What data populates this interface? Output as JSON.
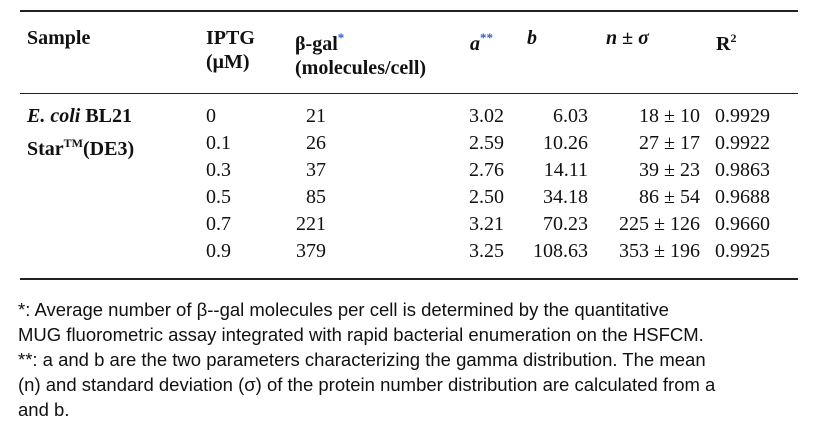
{
  "table": {
    "headers": {
      "sample": "Sample",
      "iptg_line1": "IPTG",
      "iptg_line2": "(μM)",
      "bgal_line1": "β-gal",
      "bgal_mark": "*",
      "bgal_line2": "(molecules/cell)",
      "a": "a",
      "a_mark": "**",
      "b": "b",
      "n_sigma": "n ± σ",
      "r2": "R",
      "r2_sup": "2"
    },
    "sample": {
      "line1_italic": "E. coli",
      "line1_rest": " BL21",
      "line2_main": "Star",
      "line2_tm": "TM",
      "line2_rest": "(DE3)"
    },
    "rows": [
      {
        "iptg": "0",
        "bgal": "21",
        "a": "3.02",
        "b": "6.03",
        "n_sigma": "18 ± 10",
        "r2": "0.9929"
      },
      {
        "iptg": "0.1",
        "bgal": "26",
        "a": "2.59",
        "b": "10.26",
        "n_sigma": "27 ± 17",
        "r2": "0.9922"
      },
      {
        "iptg": "0.3",
        "bgal": "37",
        "a": "2.76",
        "b": "14.11",
        "n_sigma": "39 ± 23",
        "r2": "0.9863"
      },
      {
        "iptg": "0.5",
        "bgal": "85",
        "a": "2.50",
        "b": "34.18",
        "n_sigma": "86 ± 54",
        "r2": "0.9688"
      },
      {
        "iptg": "0.7",
        "bgal": "221",
        "a": "3.21",
        "b": "70.23",
        "n_sigma": "225 ± 126",
        "r2": "0.9660"
      },
      {
        "iptg": "0.9",
        "bgal": "379",
        "a": "3.25",
        "b": "108.63",
        "n_sigma": "353 ± 196",
        "r2": "0.9925"
      }
    ]
  },
  "notes": {
    "line1": "*: Average number of β--gal molecules per cell is determined by the quantitative",
    "line2": "MUG fluorometric assay integrated with rapid bacterial enumeration on the HSFCM.",
    "line3": "**: a and b are the two parameters characterizing the gamma distribution. The mean",
    "line4": "(n) and standard deviation (σ) of the protein number distribution are calculated from a",
    "line5": "and b."
  }
}
